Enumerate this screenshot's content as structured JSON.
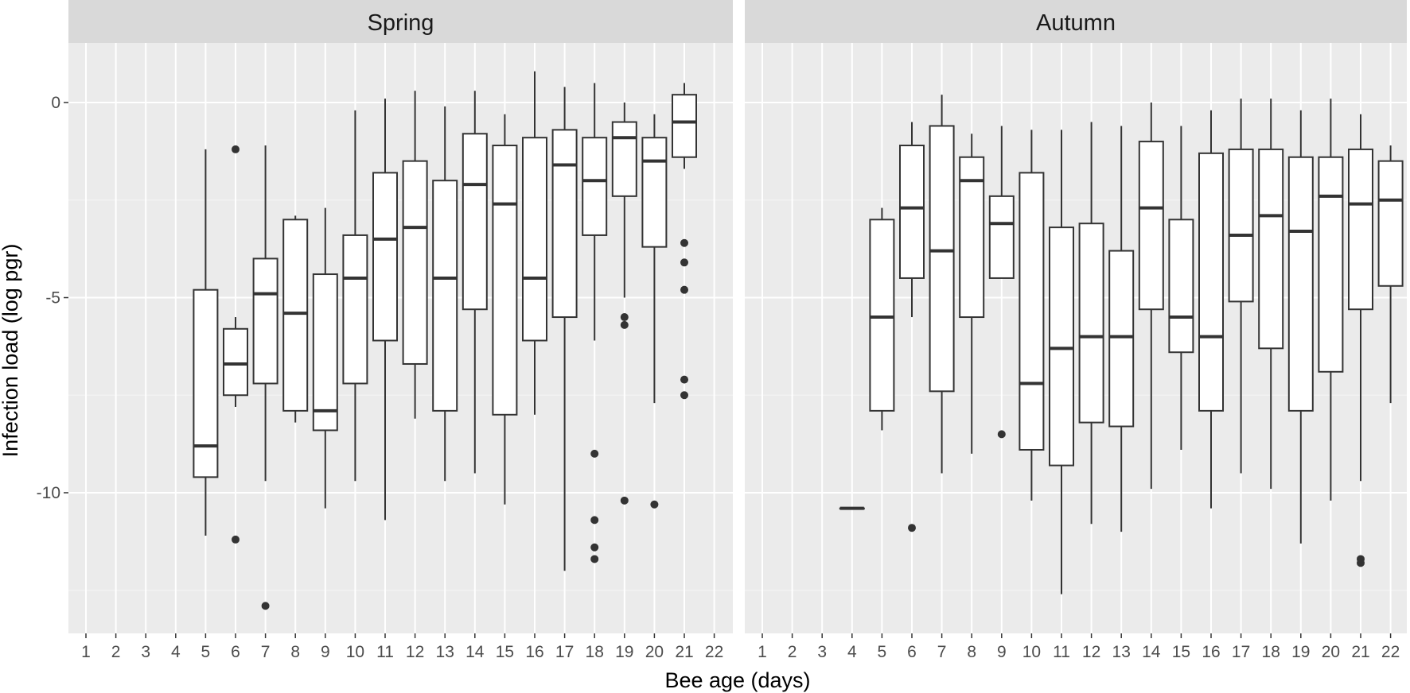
{
  "chart_data": {
    "type": "boxplot",
    "xlabel": "Bee age (days)",
    "ylabel": "Infection load (log pgr)",
    "x_categories": [
      "1",
      "2",
      "3",
      "4",
      "5",
      "6",
      "7",
      "8",
      "9",
      "10",
      "11",
      "12",
      "13",
      "14",
      "15",
      "16",
      "17",
      "18",
      "19",
      "20",
      "21",
      "22"
    ],
    "ylim": [
      -13.5,
      1.5
    ],
    "y_ticks": [
      0,
      -5,
      -10
    ],
    "y_tick_labels": [
      "0",
      "-5",
      "-10"
    ],
    "grid": true,
    "facets": [
      {
        "label": "Spring",
        "boxes": [
          {
            "age": 5,
            "whisker_low": -11.1,
            "q1": -9.6,
            "median": -8.8,
            "q3": -4.8,
            "whisker_high": -1.2,
            "outliers": []
          },
          {
            "age": 6,
            "whisker_low": -7.8,
            "q1": -7.5,
            "median": -6.7,
            "q3": -5.8,
            "whisker_high": -5.5,
            "outliers": [
              -1.2,
              -11.2
            ]
          },
          {
            "age": 7,
            "whisker_low": -9.7,
            "q1": -7.2,
            "median": -4.9,
            "q3": -4.0,
            "whisker_high": -1.1,
            "outliers": [
              -12.9
            ]
          },
          {
            "age": 8,
            "whisker_low": -8.2,
            "q1": -7.9,
            "median": -5.4,
            "q3": -3.0,
            "whisker_high": -2.9,
            "outliers": []
          },
          {
            "age": 9,
            "whisker_low": -10.4,
            "q1": -8.4,
            "median": -7.9,
            "q3": -4.4,
            "whisker_high": -2.7,
            "outliers": []
          },
          {
            "age": 10,
            "whisker_low": -9.7,
            "q1": -7.2,
            "median": -4.5,
            "q3": -3.4,
            "whisker_high": -0.2,
            "outliers": []
          },
          {
            "age": 11,
            "whisker_low": -10.7,
            "q1": -6.1,
            "median": -3.5,
            "q3": -1.8,
            "whisker_high": 0.1,
            "outliers": []
          },
          {
            "age": 12,
            "whisker_low": -8.1,
            "q1": -6.7,
            "median": -3.2,
            "q3": -1.5,
            "whisker_high": 0.3,
            "outliers": []
          },
          {
            "age": 13,
            "whisker_low": -9.7,
            "q1": -7.9,
            "median": -4.5,
            "q3": -2.0,
            "whisker_high": -0.1,
            "outliers": []
          },
          {
            "age": 14,
            "whisker_low": -9.5,
            "q1": -5.3,
            "median": -2.1,
            "q3": -0.8,
            "whisker_high": 0.3,
            "outliers": []
          },
          {
            "age": 15,
            "whisker_low": -10.3,
            "q1": -8.0,
            "median": -2.6,
            "q3": -1.1,
            "whisker_high": -0.3,
            "outliers": []
          },
          {
            "age": 16,
            "whisker_low": -8.0,
            "q1": -6.1,
            "median": -4.5,
            "q3": -0.9,
            "whisker_high": 0.8,
            "outliers": []
          },
          {
            "age": 17,
            "whisker_low": -12.0,
            "q1": -5.5,
            "median": -1.6,
            "q3": -0.7,
            "whisker_high": 0.4,
            "outliers": []
          },
          {
            "age": 18,
            "whisker_low": -6.1,
            "q1": -3.4,
            "median": -2.0,
            "q3": -0.9,
            "whisker_high": 0.5,
            "outliers": [
              -9.0,
              -10.7,
              -11.4,
              -11.7
            ]
          },
          {
            "age": 19,
            "whisker_low": -5.0,
            "q1": -2.4,
            "median": -0.9,
            "q3": -0.5,
            "whisker_high": 0.0,
            "outliers": [
              -5.5,
              -5.7,
              -10.2
            ]
          },
          {
            "age": 20,
            "whisker_low": -7.7,
            "q1": -3.7,
            "median": -1.5,
            "q3": -0.9,
            "whisker_high": -0.3,
            "outliers": [
              -10.3
            ]
          },
          {
            "age": 21,
            "whisker_low": -1.7,
            "q1": -1.4,
            "median": -0.5,
            "q3": 0.2,
            "whisker_high": 0.5,
            "outliers": [
              -3.6,
              -4.1,
              -4.8,
              -7.1,
              -7.5
            ]
          }
        ]
      },
      {
        "label": "Autumn",
        "boxes": [
          {
            "age": 4,
            "whisker_low": -10.4,
            "q1": -10.4,
            "median": -10.4,
            "q3": -10.4,
            "whisker_high": -10.4,
            "outliers": []
          },
          {
            "age": 5,
            "whisker_low": -8.4,
            "q1": -7.9,
            "median": -5.5,
            "q3": -3.0,
            "whisker_high": -2.7,
            "outliers": []
          },
          {
            "age": 6,
            "whisker_low": -5.5,
            "q1": -4.5,
            "median": -2.7,
            "q3": -1.1,
            "whisker_high": -0.5,
            "outliers": [
              -10.9
            ]
          },
          {
            "age": 7,
            "whisker_low": -9.5,
            "q1": -7.4,
            "median": -3.8,
            "q3": -0.6,
            "whisker_high": 0.2,
            "outliers": []
          },
          {
            "age": 8,
            "whisker_low": -9.0,
            "q1": -5.5,
            "median": -2.0,
            "q3": -1.4,
            "whisker_high": -0.8,
            "outliers": []
          },
          {
            "age": 9,
            "whisker_low": -4.5,
            "q1": -4.5,
            "median": -3.1,
            "q3": -2.4,
            "whisker_high": -0.6,
            "outliers": [
              -8.5
            ]
          },
          {
            "age": 10,
            "whisker_low": -10.2,
            "q1": -8.9,
            "median": -7.2,
            "q3": -1.8,
            "whisker_high": -0.7,
            "outliers": []
          },
          {
            "age": 11,
            "whisker_low": -12.6,
            "q1": -9.3,
            "median": -6.3,
            "q3": -3.2,
            "whisker_high": -0.7,
            "outliers": []
          },
          {
            "age": 12,
            "whisker_low": -10.8,
            "q1": -8.2,
            "median": -6.0,
            "q3": -3.1,
            "whisker_high": -0.5,
            "outliers": []
          },
          {
            "age": 13,
            "whisker_low": -11.0,
            "q1": -8.3,
            "median": -6.0,
            "q3": -3.8,
            "whisker_high": -0.6,
            "outliers": []
          },
          {
            "age": 14,
            "whisker_low": -9.9,
            "q1": -5.3,
            "median": -2.7,
            "q3": -1.0,
            "whisker_high": 0.0,
            "outliers": []
          },
          {
            "age": 15,
            "whisker_low": -8.9,
            "q1": -6.4,
            "median": -5.5,
            "q3": -3.0,
            "whisker_high": -0.6,
            "outliers": []
          },
          {
            "age": 16,
            "whisker_low": -10.4,
            "q1": -7.9,
            "median": -6.0,
            "q3": -1.3,
            "whisker_high": -0.2,
            "outliers": []
          },
          {
            "age": 17,
            "whisker_low": -9.5,
            "q1": -5.1,
            "median": -3.4,
            "q3": -1.2,
            "whisker_high": 0.1,
            "outliers": []
          },
          {
            "age": 18,
            "whisker_low": -9.9,
            "q1": -6.3,
            "median": -2.9,
            "q3": -1.2,
            "whisker_high": 0.1,
            "outliers": []
          },
          {
            "age": 19,
            "whisker_low": -11.3,
            "q1": -7.9,
            "median": -3.3,
            "q3": -1.4,
            "whisker_high": -0.2,
            "outliers": []
          },
          {
            "age": 20,
            "whisker_low": -10.2,
            "q1": -6.9,
            "median": -2.4,
            "q3": -1.4,
            "whisker_high": 0.1,
            "outliers": []
          },
          {
            "age": 21,
            "whisker_low": -9.7,
            "q1": -5.3,
            "median": -2.6,
            "q3": -1.2,
            "whisker_high": -0.3,
            "outliers": [
              -11.7,
              -11.8
            ]
          },
          {
            "age": 22,
            "whisker_low": -7.7,
            "q1": -4.7,
            "median": -2.5,
            "q3": -1.5,
            "whisker_high": -1.1,
            "outliers": []
          }
        ]
      }
    ]
  }
}
